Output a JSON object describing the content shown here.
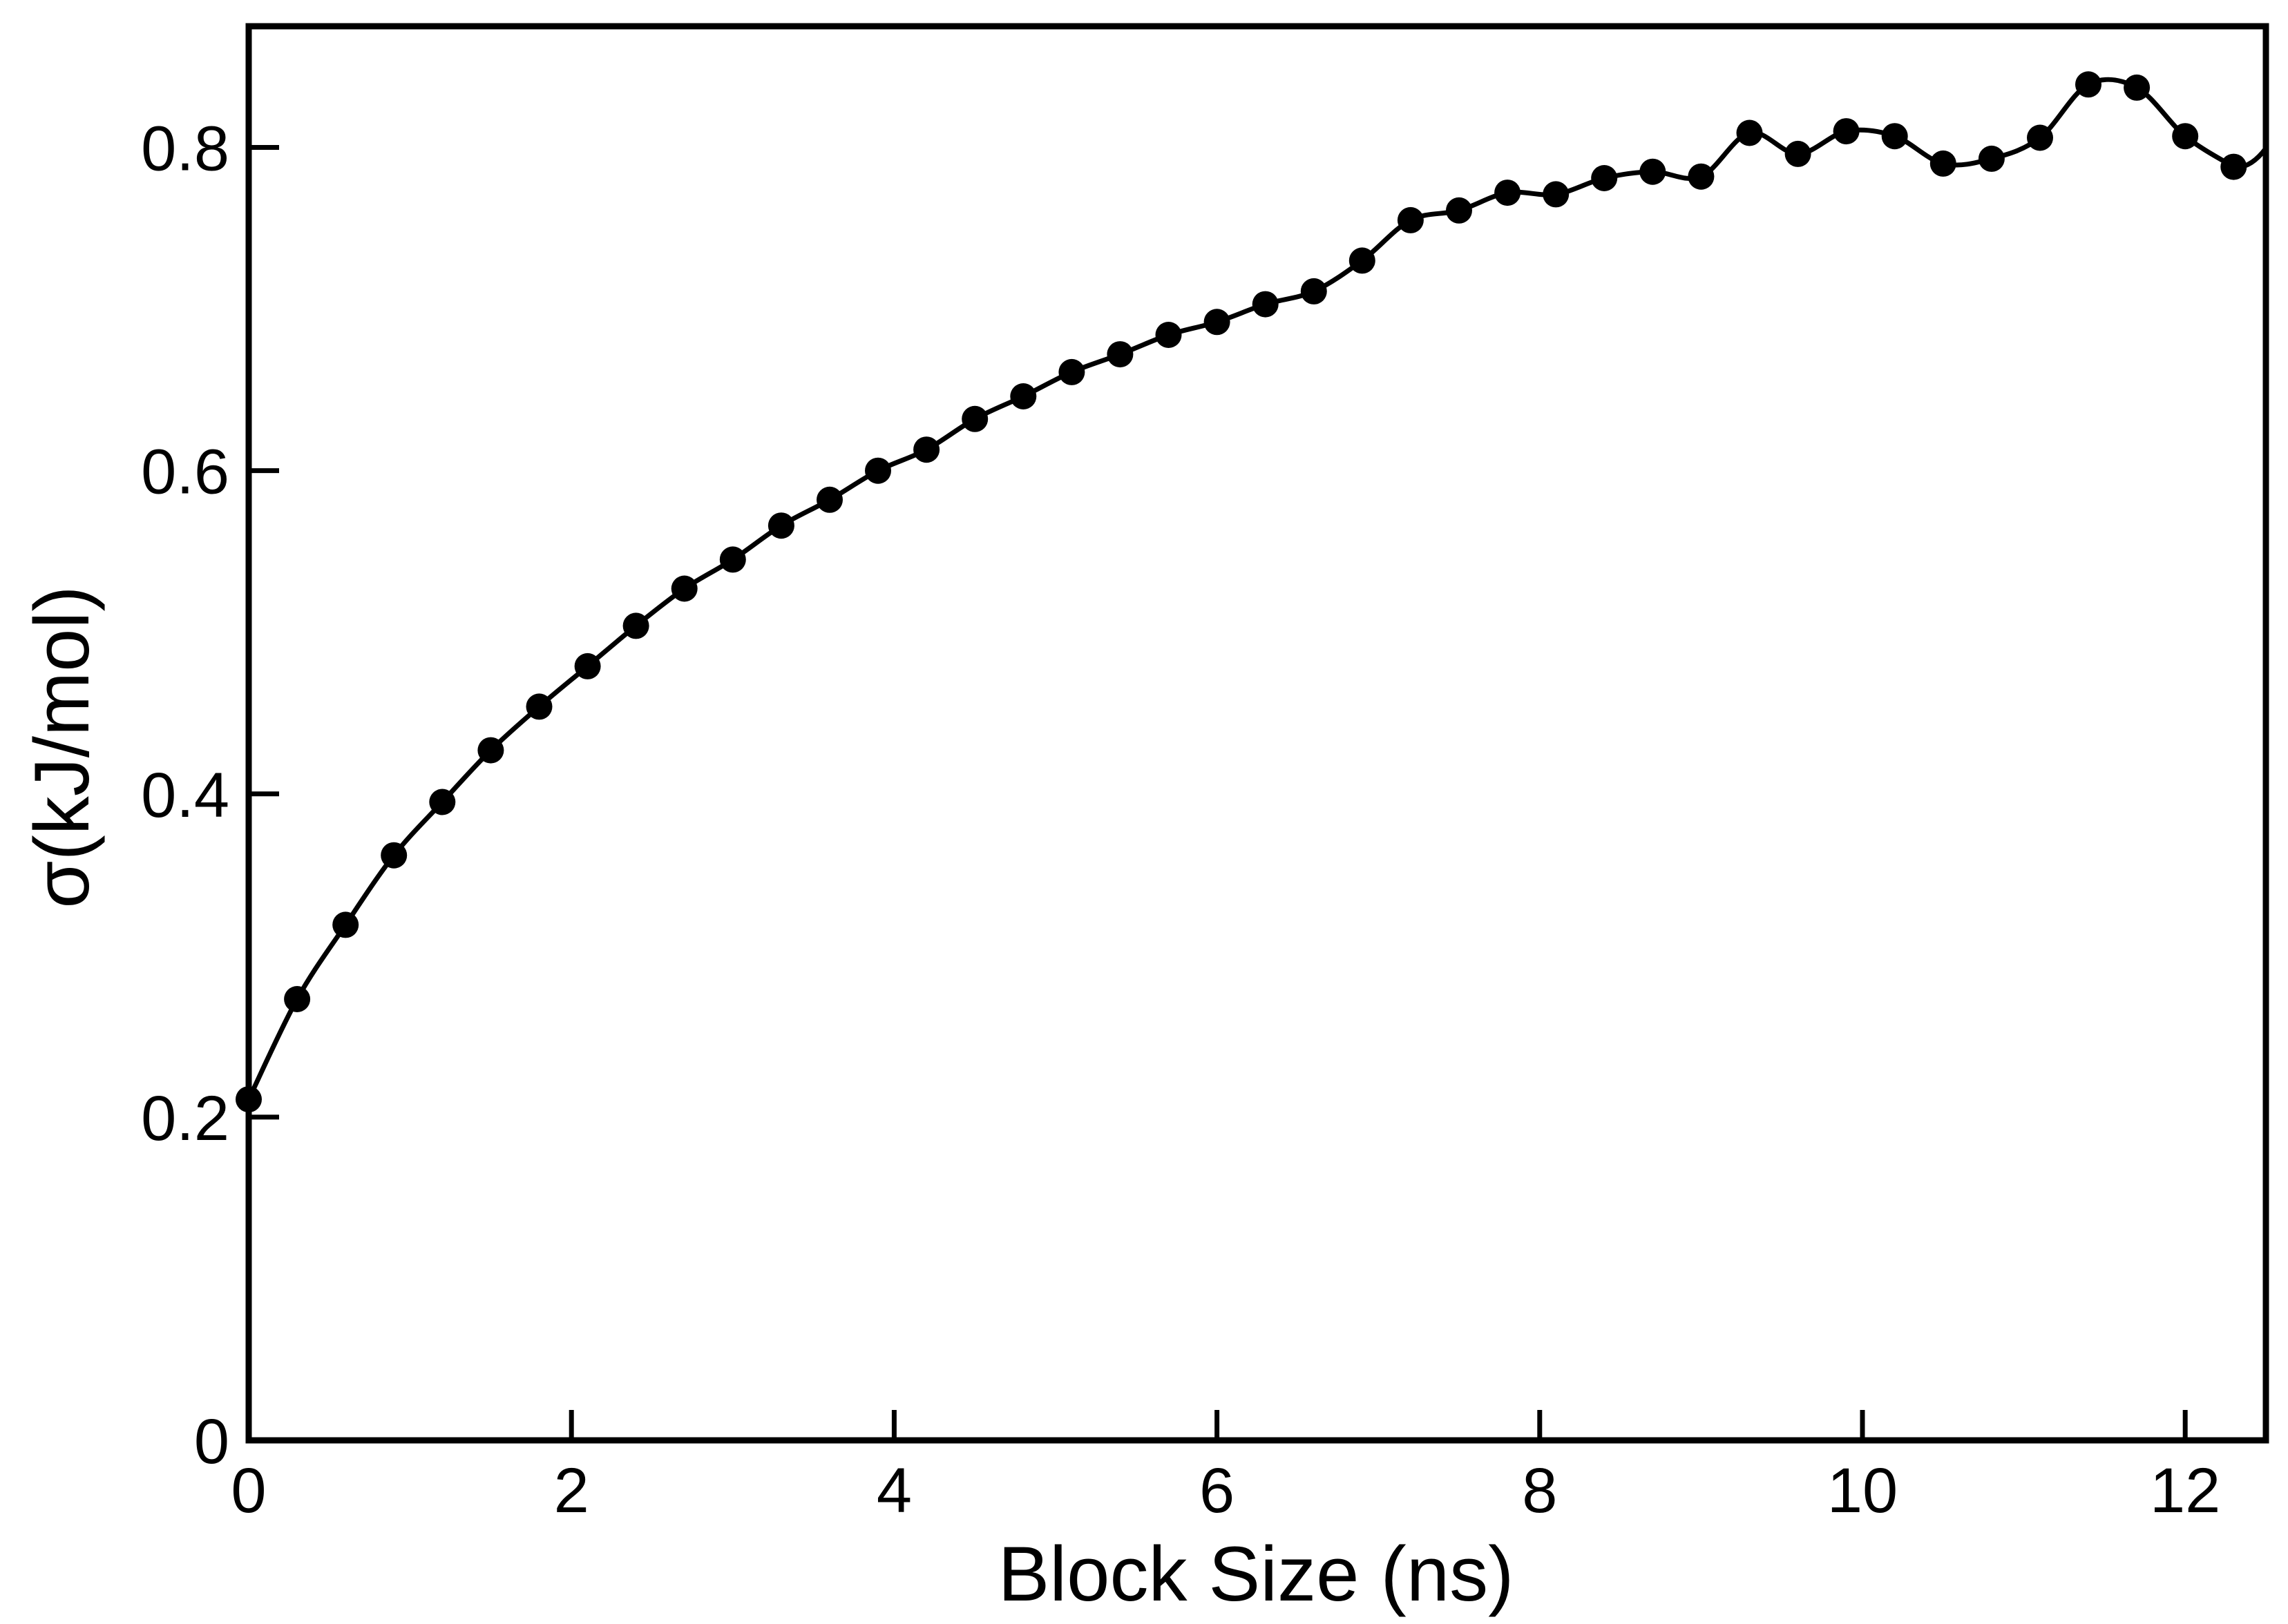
{
  "chart_data": {
    "type": "line",
    "title": "",
    "xlabel": "Block Size (ns)",
    "ylabel": "σ(kJ/mol)",
    "xlim": [
      0,
      12.5
    ],
    "ylim": [
      0,
      0.875
    ],
    "xticks": [
      0,
      2,
      4,
      6,
      8,
      10,
      12
    ],
    "xtick_labels": [
      "0",
      "2",
      "4",
      "6",
      "8",
      "10",
      "12"
    ],
    "yticks": [
      0,
      0.2,
      0.4,
      0.6,
      0.8
    ],
    "ytick_labels": [
      "0",
      "0.2",
      "0.4",
      "0.6",
      "0.8"
    ],
    "grid": false,
    "legend": "none",
    "colors": {
      "line": "#000000",
      "marker": "#000000",
      "frame": "#000000"
    },
    "series": [
      {
        "x": [
          0.0,
          0.3,
          0.6,
          0.9,
          1.2,
          1.5,
          1.8,
          2.1,
          2.4,
          2.7,
          3.0,
          3.3,
          3.6,
          3.9,
          4.2,
          4.5,
          4.8,
          5.1,
          5.4,
          5.7,
          6.0,
          6.3,
          6.6,
          6.9,
          7.2,
          7.5,
          7.8,
          8.1,
          8.4,
          8.7,
          9.0,
          9.3,
          9.6,
          9.9,
          10.2,
          10.5,
          10.8,
          11.1,
          11.4,
          11.7,
          12.0,
          12.3
        ],
        "y": [
          0.211,
          0.273,
          0.319,
          0.362,
          0.395,
          0.427,
          0.454,
          0.479,
          0.504,
          0.527,
          0.545,
          0.566,
          0.582,
          0.6,
          0.613,
          0.632,
          0.646,
          0.661,
          0.672,
          0.684,
          0.692,
          0.703,
          0.711,
          0.73,
          0.755,
          0.761,
          0.772,
          0.771,
          0.781,
          0.785,
          0.782,
          0.809,
          0.796,
          0.81,
          0.807,
          0.79,
          0.793,
          0.806,
          0.839,
          0.837,
          0.807,
          0.788
        ]
      }
    ]
  }
}
